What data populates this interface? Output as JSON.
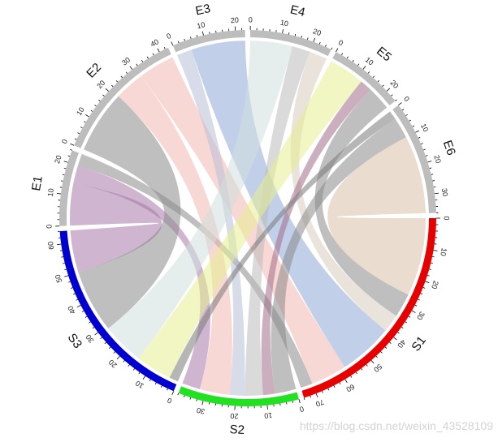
{
  "chart_data": {
    "type": "chord",
    "title": "",
    "rows": [
      "S1",
      "S2",
      "S3"
    ],
    "columns": [
      "E1",
      "E2",
      "E3",
      "E4",
      "E5",
      "E6"
    ],
    "matrix": [
      [
        4,
        12,
        18,
        6,
        8,
        26
      ],
      [
        6,
        10,
        5,
        6,
        4,
        7
      ],
      [
        14,
        21,
        0,
        14,
        12,
        3
      ]
    ],
    "sector_order": [
      "S1",
      "S2",
      "S3",
      "E1",
      "E2",
      "E3",
      "E4",
      "E5",
      "E6"
    ],
    "sector_colors": {
      "S1": "#e60000",
      "S2": "#22e022",
      "S3": "#0000d0",
      "E1": "#bdbdbd",
      "E2": "#bdbdbd",
      "E3": "#bdbdbd",
      "E4": "#bdbdbd",
      "E5": "#bdbdbd",
      "E6": "#bdbdbd"
    },
    "link_colors": [
      [
        "#8a8a8a",
        "#f2b8b0",
        "#8fa8d6",
        "#d9ccc0",
        "#8a8a8a",
        "#d8bfa8"
      ],
      [
        "#a878a8",
        "#f2b8b0",
        "#b8c0d6",
        "#bcbcbc",
        "#a06e8a",
        "#8a8a8a"
      ],
      [
        "#a878a8",
        "#8a8a8a",
        "#cccccc",
        "#cfe0dc",
        "#e6ee90",
        "#7a7a7a"
      ]
    ],
    "major_tick_interval": 10,
    "minor_tick_interval": 2
  },
  "watermark": "https://blog.csdn.net/weixin_43528109"
}
